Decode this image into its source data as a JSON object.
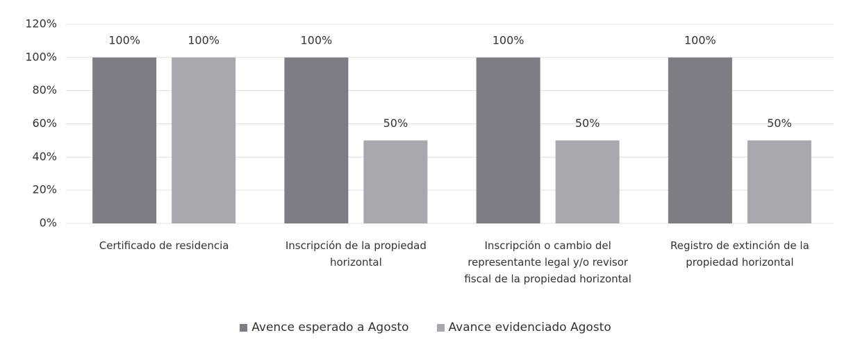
{
  "chart_data": {
    "type": "bar",
    "categories": [
      "Certificado de residencia",
      "Inscripción de la propiedad horizontal",
      "Inscripción o cambio del representante legal y/o revisor fiscal de la propiedad horizontal",
      "Registro de extinción de la propiedad horizontal"
    ],
    "series": [
      {
        "name": "Avence esperado a Agosto",
        "color": "#7d7d85",
        "values": [
          100,
          100,
          100,
          100
        ],
        "value_labels": [
          "100%",
          "100%",
          "100%",
          "100%"
        ]
      },
      {
        "name": "Avance evidenciado Agosto",
        "color": "#a8a8ae",
        "values": [
          100,
          50,
          50,
          50
        ],
        "value_labels": [
          "100%",
          "50%",
          "50%",
          "50%"
        ]
      }
    ],
    "ylim": [
      0,
      120
    ],
    "yticks": [
      {
        "value": 0,
        "label": "0%"
      },
      {
        "value": 20,
        "label": "20%"
      },
      {
        "value": 40,
        "label": "40%"
      },
      {
        "value": 60,
        "label": "60%"
      },
      {
        "value": 80,
        "label": "80%"
      },
      {
        "value": 100,
        "label": "100%"
      },
      {
        "value": 120,
        "label": "120%"
      }
    ],
    "grid": true,
    "legend": "bottom"
  }
}
